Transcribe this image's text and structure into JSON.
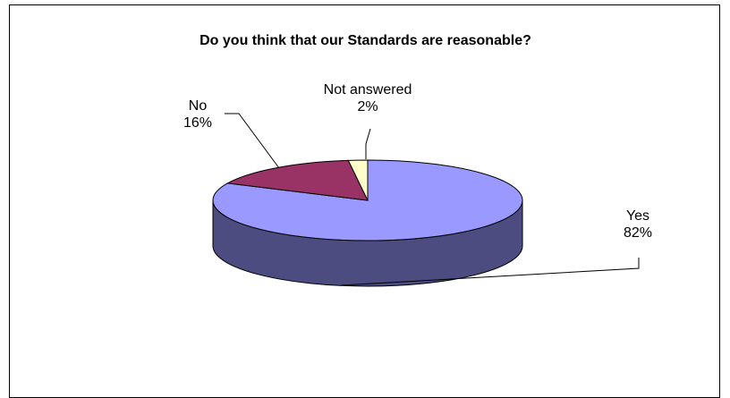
{
  "chart_data": {
    "type": "pie",
    "title": "Do you think that our Standards are reasonable?",
    "slices": [
      {
        "name": "Yes",
        "value": 82,
        "value_label": "82%",
        "color": "#9999ff",
        "side_color": "#4c4c80"
      },
      {
        "name": "No",
        "value": 16,
        "value_label": "16%",
        "color": "#993366",
        "side_color": "#4d1a33"
      },
      {
        "name": "Not answered",
        "value": 2,
        "value_label": "2%",
        "color": "#ffffcc",
        "side_color": "#80806a"
      }
    ],
    "legend": "none",
    "three_d": true
  }
}
